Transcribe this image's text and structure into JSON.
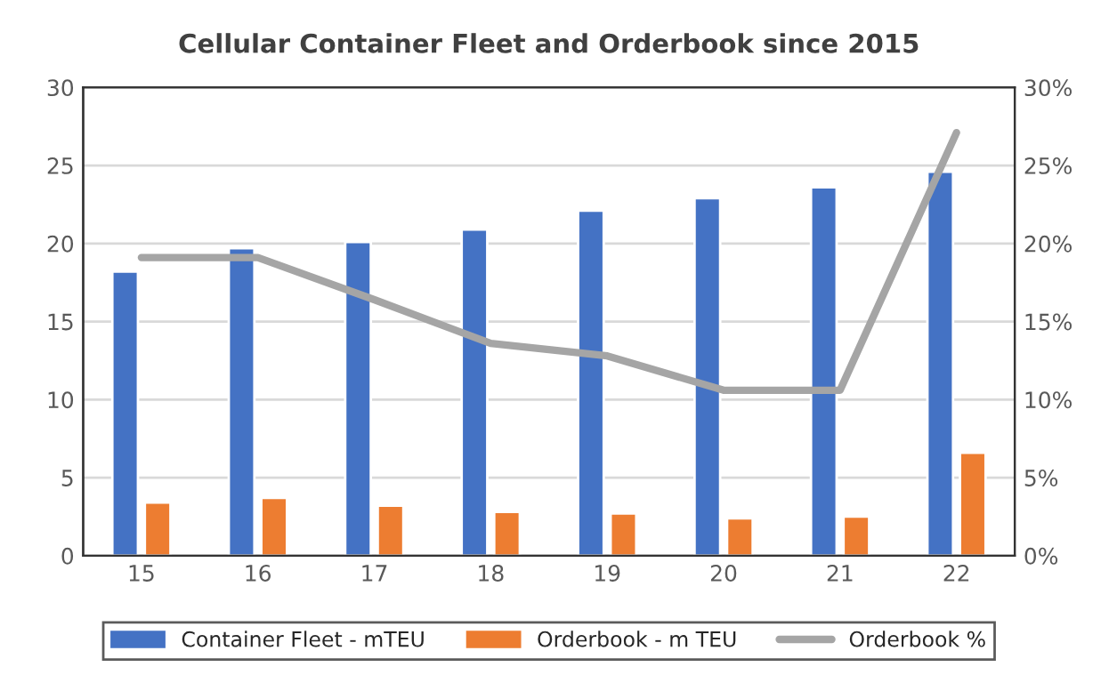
{
  "chart_data": {
    "type": "bar",
    "title": "Cellular Container Fleet and Orderbook since 2015",
    "categories": [
      "15",
      "16",
      "17",
      "18",
      "19",
      "20",
      "21",
      "22"
    ],
    "series": [
      {
        "name": "Container Fleet - mTEU",
        "color": "#4472c4",
        "values": [
          18.2,
          19.7,
          20.1,
          20.9,
          22.1,
          22.9,
          23.6,
          24.6
        ]
      },
      {
        "name": "Orderbook - m TEU",
        "color": "#ed7d31",
        "values": [
          3.4,
          3.7,
          3.2,
          2.8,
          2.7,
          2.4,
          2.5,
          6.6
        ]
      },
      {
        "name": "Orderbook %",
        "color": "#a5a5a5",
        "type": "line",
        "axis": "y2",
        "values": [
          19.1,
          19.1,
          16.4,
          13.6,
          12.8,
          10.6,
          10.6,
          27.1
        ]
      }
    ],
    "ylim": [
      0,
      30
    ],
    "yticks": [
      0,
      5,
      10,
      15,
      20,
      25,
      30
    ],
    "y2lim": [
      0,
      30
    ],
    "y2ticks": [
      {
        "value": 0,
        "label": "0%"
      },
      {
        "value": 5,
        "label": "5%"
      },
      {
        "value": 10,
        "label": "10%"
      },
      {
        "value": 15,
        "label": "15%"
      },
      {
        "value": 20,
        "label": "20%"
      },
      {
        "value": 25,
        "label": "25%"
      },
      {
        "value": 30,
        "label": "30%"
      }
    ],
    "grid": "y",
    "legend": "bottom"
  }
}
